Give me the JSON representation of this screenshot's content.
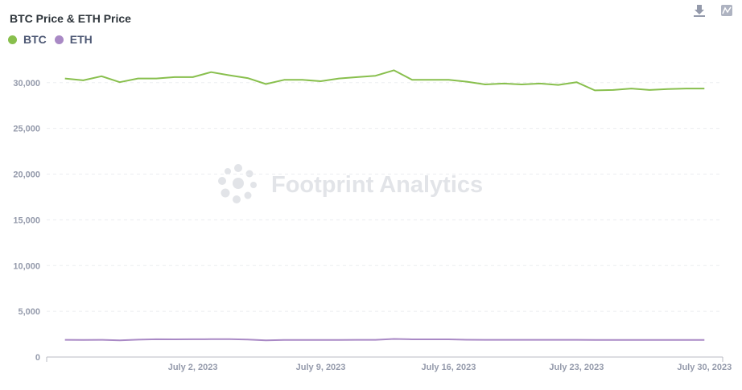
{
  "toolbar": {
    "download_icon": "download-icon",
    "chart_icon": "chart-settings-icon"
  },
  "watermark": "Footprint Analytics",
  "chart_data": {
    "type": "line",
    "title": "BTC Price & ETH Price",
    "xlabel": "",
    "ylabel": "",
    "legend_placement": "top-left",
    "grid": true,
    "ylim": [
      0,
      32000
    ],
    "yticks": [
      0,
      5000,
      10000,
      15000,
      20000,
      25000,
      30000
    ],
    "ytick_labels": [
      "0",
      "5,000",
      "10,000",
      "15,000",
      "20,000",
      "25,000",
      "30,000"
    ],
    "x_range": [
      "2023-06-24",
      "2023-07-31"
    ],
    "xticks": [
      "2023-07-02",
      "2023-07-09",
      "2023-07-16",
      "2023-07-23",
      "2023-07-30"
    ],
    "xtick_labels": [
      "July 2, 2023",
      "July 9, 2023",
      "July 16, 2023",
      "July 23, 2023",
      "July 30, 2023"
    ],
    "x": [
      "2023-06-25",
      "2023-06-26",
      "2023-06-27",
      "2023-06-28",
      "2023-06-29",
      "2023-06-30",
      "2023-07-01",
      "2023-07-02",
      "2023-07-03",
      "2023-07-04",
      "2023-07-05",
      "2023-07-06",
      "2023-07-07",
      "2023-07-08",
      "2023-07-09",
      "2023-07-10",
      "2023-07-11",
      "2023-07-12",
      "2023-07-13",
      "2023-07-14",
      "2023-07-15",
      "2023-07-16",
      "2023-07-17",
      "2023-07-18",
      "2023-07-19",
      "2023-07-20",
      "2023-07-21",
      "2023-07-22",
      "2023-07-23",
      "2023-07-24",
      "2023-07-25",
      "2023-07-26",
      "2023-07-27",
      "2023-07-28",
      "2023-07-29",
      "2023-07-30"
    ],
    "series": [
      {
        "name": "BTC",
        "color": "#88bf4d",
        "values": [
          30450,
          30250,
          30700,
          30050,
          30450,
          30450,
          30600,
          30600,
          31150,
          30800,
          30500,
          29850,
          30300,
          30300,
          30150,
          30450,
          30600,
          30750,
          31350,
          30300,
          30300,
          30300,
          30100,
          29800,
          29900,
          29800,
          29900,
          29750,
          30050,
          29150,
          29200,
          29350,
          29200,
          29300,
          29350,
          29350
        ]
      },
      {
        "name": "ETH",
        "color": "#a989c5",
        "values": [
          1880,
          1860,
          1880,
          1830,
          1900,
          1940,
          1930,
          1940,
          1950,
          1950,
          1910,
          1820,
          1870,
          1860,
          1860,
          1870,
          1880,
          1880,
          1980,
          1930,
          1930,
          1930,
          1890,
          1880,
          1880,
          1880,
          1880,
          1880,
          1880,
          1860,
          1860,
          1860,
          1870,
          1870,
          1870,
          1870
        ]
      }
    ]
  }
}
